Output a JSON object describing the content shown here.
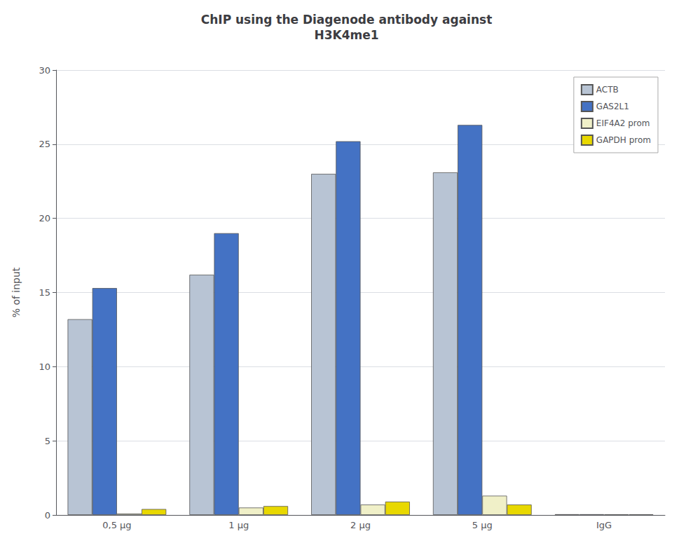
{
  "chart_data": {
    "type": "bar",
    "title": "ChIP using the Diagenode antibody against\nH3K4me1",
    "ylabel": "% of input",
    "categories": [
      "0,5 μg",
      "1 μg",
      "2 μg",
      "5 μg",
      "IgG"
    ],
    "series": [
      {
        "name": "ACTB",
        "color": "#b8c4d4",
        "values": [
          13.2,
          16.2,
          23.0,
          23.1,
          0.05
        ]
      },
      {
        "name": "GAS2L1",
        "color": "#4472c4",
        "values": [
          15.3,
          19.0,
          25.2,
          26.3,
          0.05
        ]
      },
      {
        "name": "EIF4A2 prom",
        "color": "#f0f0c8",
        "values": [
          0.1,
          0.5,
          0.7,
          1.3,
          0.04
        ]
      },
      {
        "name": "GAPDH prom",
        "color": "#e8d800",
        "values": [
          0.4,
          0.6,
          0.9,
          0.7,
          0.04
        ]
      }
    ],
    "ylim": [
      0,
      30
    ],
    "yticks": [
      0,
      5,
      10,
      15,
      20,
      25,
      30
    ],
    "grid": true,
    "legend": "upper right"
  }
}
